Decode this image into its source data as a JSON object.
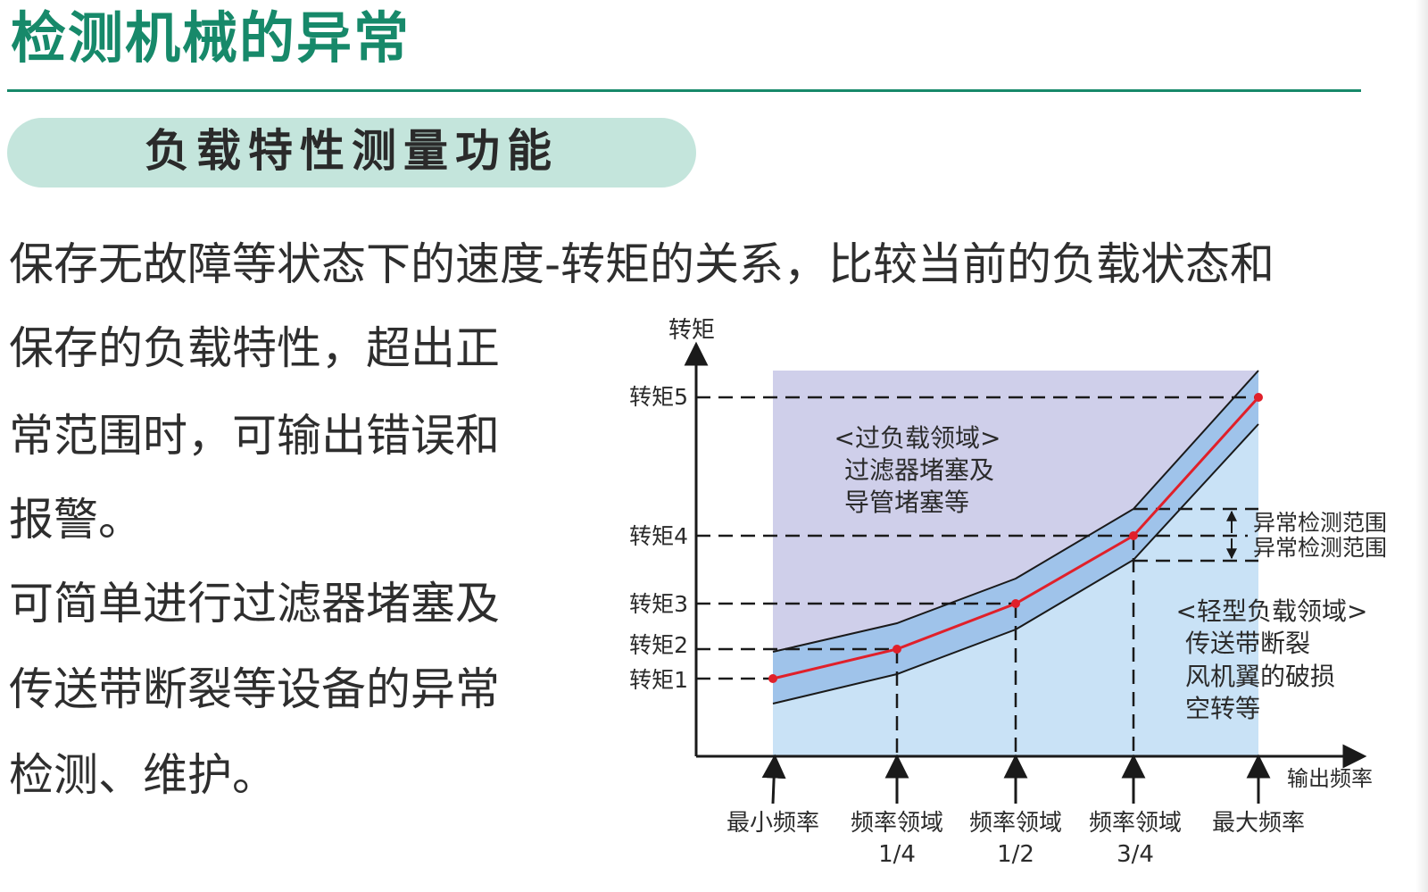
{
  "page": {
    "title": "检测机械的异常",
    "section_title": "负载特性测量功能"
  },
  "description": {
    "line1": "保存无故障等状态下的速度-转矩的关系，比较当前的负载状态和",
    "line2": "保存的负载特性，超出正",
    "line3": "常范围时，可输出错误和",
    "line4": "报警。",
    "line5": "可简单进行过滤器堵塞及",
    "line6": "传送带断裂等设备的异常",
    "line7": "检测、维护。"
  },
  "diagram": {
    "y_axis_label": "转矩",
    "x_axis_label": "输出频率",
    "torque_labels": [
      "转矩5",
      "转矩4",
      "转矩3",
      "转矩2",
      "转矩1"
    ],
    "x_markers": [
      {
        "line1": "最小频率",
        "line2": ""
      },
      {
        "line1": "频率领域",
        "line2": "1/4"
      },
      {
        "line1": "频率领域",
        "line2": "1/2"
      },
      {
        "line1": "频率领域",
        "line2": "3/4"
      },
      {
        "line1": "最大频率",
        "line2": ""
      }
    ],
    "overload_region": {
      "title": "<过负载领域>",
      "line1": "过滤器堵塞及",
      "line2": "导管堵塞等"
    },
    "light_region": {
      "title": "<轻型负载领域>",
      "line1": "传送带断裂",
      "line2": "风机翼的破损",
      "line3": "空转等"
    },
    "range_labels": [
      "异常检测范围",
      "异常检测范围"
    ],
    "colors": {
      "overload_fill": "#cfcfea",
      "light_fill": "#c9e2f6",
      "band_fill": "#9fc3ea",
      "curve": "#e0202a",
      "title_green": "#17896a",
      "pill": "#c4e5dc"
    }
  }
}
